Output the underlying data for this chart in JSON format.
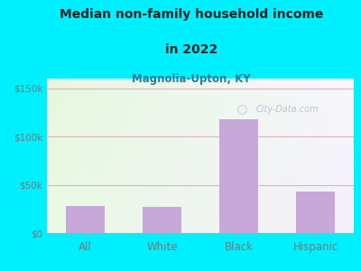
{
  "title_line1": "Median non-family household income",
  "title_line2": "in 2022",
  "subtitle": "Magnolia-Upton, KY",
  "categories": [
    "All",
    "White",
    "Black",
    "Hispanic"
  ],
  "values": [
    28000,
    27000,
    118000,
    43000
  ],
  "bar_color": "#c8a8d8",
  "background_outer": "#00f0ff",
  "title_color": "#222222",
  "subtitle_color": "#2a7a9a",
  "tick_color": "#777777",
  "gridline_color": "#e0b0c0",
  "ylim": [
    0,
    160000
  ],
  "yticks": [
    0,
    50000,
    100000,
    150000
  ],
  "ytick_labels": [
    "$0",
    "$50k",
    "$100k",
    "$150k"
  ],
  "watermark": "City-Data.com",
  "figsize": [
    4.0,
    3.0
  ],
  "dpi": 100
}
